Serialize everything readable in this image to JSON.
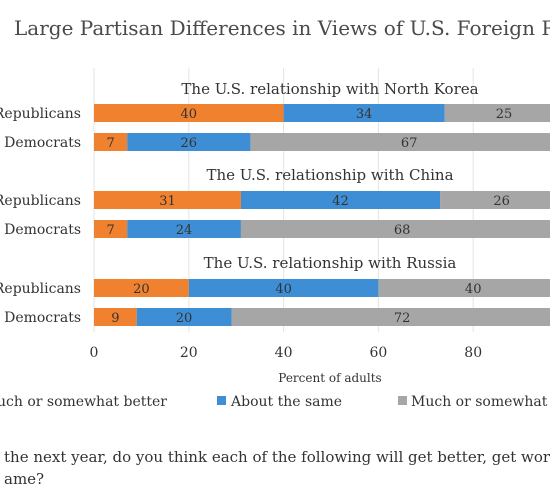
{
  "chart_data": {
    "type": "bar",
    "orientation": "horizontal",
    "stacked": true,
    "title": "Large Partisan Differences in Views of U.S. Foreign Relati",
    "xlabel": "Percent of adults",
    "xlim": [
      0,
      100
    ],
    "x_ticks": [
      "0",
      "20",
      "40",
      "60",
      "80"
    ],
    "grid": true,
    "legend_position": "bottom",
    "series": [
      {
        "name": "uch or somewhat better",
        "color": "#f0812e"
      },
      {
        "name": "About the same",
        "color": "#3e8ed6"
      },
      {
        "name": "Much or somewhat w",
        "color": "#a6a6a6"
      }
    ],
    "panels": [
      {
        "title": "The U.S. relationship with North Korea",
        "rows": [
          {
            "label": "Republicans",
            "values": [
              40,
              34,
              25
            ]
          },
          {
            "label": "Democrats",
            "values": [
              7,
              26,
              67
            ]
          }
        ]
      },
      {
        "title": "The U.S. relationship with China",
        "rows": [
          {
            "label": "Republicans",
            "values": [
              31,
              42,
              26
            ]
          },
          {
            "label": "Democrats",
            "values": [
              7,
              24,
              68
            ]
          }
        ]
      },
      {
        "title": "The U.S. relationship with Russia",
        "rows": [
          {
            "label": "Republicans",
            "values": [
              20,
              40,
              40
            ]
          },
          {
            "label": "Democrats",
            "values": [
              9,
              20,
              72
            ]
          }
        ]
      }
    ]
  },
  "footnote": {
    "line1": " the next year, do you think each of the following will get better, get worse",
    "line2": "ame?"
  }
}
